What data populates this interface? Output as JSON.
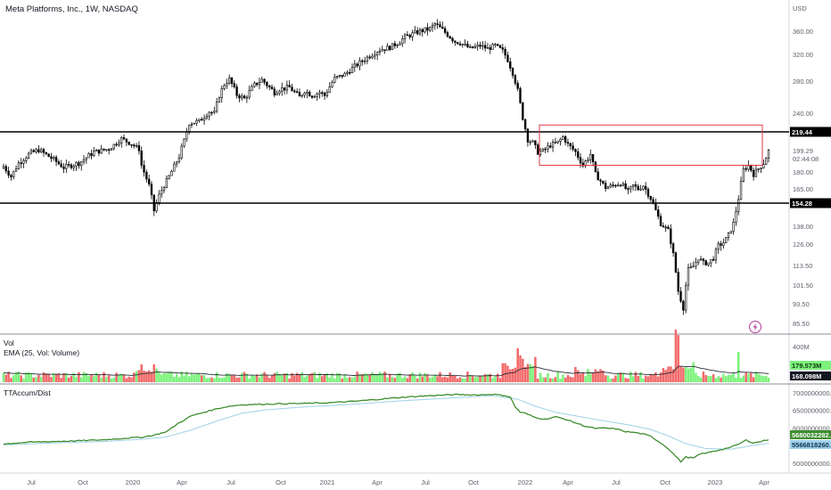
{
  "header": {
    "title": "Meta Platforms, Inc., 1W, NASDAQ",
    "currency": "USD"
  },
  "colors": {
    "up": "#ffffff",
    "down": "#000000",
    "vol_up": "#7cf27c",
    "vol_down": "#f26b6b",
    "ema": "#2a2e39",
    "accum": "#3e8d2f",
    "accum_signal": "#9fd0e8",
    "level_line": "#000000",
    "box": "#e03a45"
  },
  "chart_data": [
    {
      "type": "candlestick",
      "title": "Meta Platforms, Inc., 1W, NASDAQ",
      "y_axis_label": "USD",
      "y_ticks": [
        "360.00",
        "320.00",
        "280.00",
        "240.00",
        "219.44",
        "199.29",
        "180.00",
        "165.00",
        "154.28",
        "138.00",
        "126.00",
        "113.50",
        "101.50",
        "93.50",
        "85.50"
      ],
      "price_axis_tags": [
        {
          "label": "219.44",
          "value": 219.44
        },
        {
          "label": "199.29",
          "value": 199.29,
          "sub": "02:44:08"
        },
        {
          "label": "154.28",
          "value": 154.28
        }
      ],
      "ylim": [
        82,
        390
      ],
      "x_ticks": [
        "Jul",
        "Oct",
        "2020",
        "Apr",
        "Jul",
        "Oct",
        "2021",
        "Apr",
        "Jul",
        "Oct",
        "2022",
        "Apr",
        "Jul",
        "Oct",
        "2023",
        "Apr"
      ],
      "horizontal_lines": [
        219.44,
        154.28
      ],
      "box": {
        "x_from": "2022-01",
        "x_to": "2023-03",
        "y_from": 186,
        "y_to": 227
      },
      "close_anchors": [
        [
          0,
          185
        ],
        [
          3,
          176
        ],
        [
          6,
          188
        ],
        [
          10,
          196
        ],
        [
          14,
          200
        ],
        [
          20,
          191
        ],
        [
          24,
          184
        ],
        [
          30,
          188
        ],
        [
          36,
          198
        ],
        [
          42,
          201
        ],
        [
          47,
          212
        ],
        [
          50,
          208
        ],
        [
          54,
          201
        ],
        [
          55,
          186
        ],
        [
          58,
          168
        ],
        [
          60,
          149
        ],
        [
          62,
          160
        ],
        [
          66,
          176
        ],
        [
          70,
          194
        ],
        [
          72,
          210
        ],
        [
          74,
          229
        ],
        [
          78,
          231
        ],
        [
          82,
          242
        ],
        [
          84,
          240
        ],
        [
          86,
          262
        ],
        [
          88,
          276
        ],
        [
          90,
          283
        ],
        [
          93,
          263
        ],
        [
          96,
          258
        ],
        [
          100,
          275
        ],
        [
          103,
          282
        ],
        [
          106,
          272
        ],
        [
          108,
          266
        ],
        [
          110,
          270
        ],
        [
          114,
          272
        ],
        [
          118,
          260
        ],
        [
          120,
          268
        ],
        [
          123,
          262
        ],
        [
          126,
          266
        ],
        [
          128,
          262
        ],
        [
          130,
          273
        ],
        [
          132,
          284
        ],
        [
          136,
          290
        ],
        [
          140,
          302
        ],
        [
          143,
          310
        ],
        [
          146,
          318
        ],
        [
          150,
          328
        ],
        [
          154,
          332
        ],
        [
          158,
          342
        ],
        [
          160,
          350
        ],
        [
          163,
          355
        ],
        [
          166,
          360
        ],
        [
          170,
          364
        ],
        [
          172,
          372
        ],
        [
          175,
          362
        ],
        [
          178,
          350
        ],
        [
          180,
          342
        ],
        [
          182,
          340
        ],
        [
          186,
          330
        ],
        [
          190,
          335
        ],
        [
          193,
          330
        ],
        [
          196,
          335
        ],
        [
          199,
          326
        ],
        [
          201,
          312
        ],
        [
          203,
          292
        ],
        [
          205,
          268
        ],
        [
          207,
          235
        ],
        [
          209,
          211
        ],
        [
          211,
          208
        ],
        [
          213,
          198
        ],
        [
          215,
          199
        ],
        [
          218,
          205
        ],
        [
          221,
          208
        ],
        [
          223,
          214
        ],
        [
          225,
          206
        ],
        [
          228,
          198
        ],
        [
          231,
          186
        ],
        [
          234,
          196
        ],
        [
          236,
          178
        ],
        [
          238,
          172
        ],
        [
          240,
          166
        ],
        [
          243,
          168
        ],
        [
          246,
          170
        ],
        [
          249,
          163
        ],
        [
          251,
          168
        ],
        [
          253,
          165
        ],
        [
          255,
          168
        ],
        [
          258,
          158
        ],
        [
          262,
          140
        ],
        [
          265,
          135
        ],
        [
          267,
          120
        ],
        [
          269,
          99
        ],
        [
          271,
          92
        ],
        [
          273,
          111
        ],
        [
          275,
          113
        ],
        [
          277,
          118
        ],
        [
          279,
          115
        ],
        [
          281,
          115
        ],
        [
          283,
          118
        ],
        [
          285,
          125
        ],
        [
          287,
          127
        ],
        [
          289,
          132
        ],
        [
          291,
          140
        ],
        [
          293,
          158
        ],
        [
          295,
          182
        ],
        [
          297,
          186
        ],
        [
          299,
          178
        ],
        [
          301,
          183
        ],
        [
          303,
          188
        ],
        [
          305,
          199
        ]
      ]
    },
    {
      "type": "bar",
      "title": "Vol",
      "subtitle": "EMA (25, Vol: Volume)",
      "y_ticks": [
        "400M"
      ],
      "value_tags": [
        "179.573M",
        "168.098M"
      ],
      "volume_series": "weekly volume bars, green when week closes up, red when down; EMA(25) overlay"
    },
    {
      "type": "line",
      "title": "TTAccum/Dist",
      "y_ticks": [
        "7000000000.00",
        "6500000000.00",
        "6000000000.00",
        "5500000000.00",
        "5000000000.00"
      ],
      "value_tags": [
        "5680032282.91",
        "5566818260.02"
      ],
      "ylim": [
        4800000000,
        7150000000
      ],
      "series": [
        {
          "name": "",
          "color": "#3e8d2f",
          "anchors": [
            [
              0,
              5550000000
            ],
            [
              10,
              5600000000
            ],
            [
              20,
              5620000000
            ],
            [
              30,
              5640000000
            ],
            [
              40,
              5670000000
            ],
            [
              50,
              5720000000
            ],
            [
              55,
              5740000000
            ],
            [
              60,
              5800000000
            ],
            [
              65,
              5900000000
            ],
            [
              70,
              6150000000
            ],
            [
              75,
              6350000000
            ],
            [
              80,
              6450000000
            ],
            [
              85,
              6550000000
            ],
            [
              90,
              6620000000
            ],
            [
              95,
              6660000000
            ],
            [
              100,
              6670000000
            ],
            [
              110,
              6690000000
            ],
            [
              120,
              6700000000
            ],
            [
              130,
              6720000000
            ],
            [
              140,
              6760000000
            ],
            [
              150,
              6820000000
            ],
            [
              160,
              6880000000
            ],
            [
              170,
              6920000000
            ],
            [
              180,
              6950000000
            ],
            [
              190,
              6940000000
            ],
            [
              195,
              6960000000
            ],
            [
              200,
              6920000000
            ],
            [
              202,
              6880000000
            ],
            [
              204,
              6600000000
            ],
            [
              206,
              6450000000
            ],
            [
              208,
              6420000000
            ],
            [
              212,
              6300000000
            ],
            [
              216,
              6250000000
            ],
            [
              220,
              6320000000
            ],
            [
              224,
              6250000000
            ],
            [
              228,
              6150000000
            ],
            [
              232,
              6050000000
            ],
            [
              236,
              5990000000
            ],
            [
              240,
              6000000000
            ],
            [
              244,
              5980000000
            ],
            [
              248,
              5900000000
            ],
            [
              252,
              5870000000
            ],
            [
              255,
              5830000000
            ],
            [
              258,
              5770000000
            ],
            [
              262,
              5580000000
            ],
            [
              265,
              5420000000
            ],
            [
              268,
              5200000000
            ],
            [
              270,
              5050000000
            ],
            [
              272,
              5180000000
            ],
            [
              275,
              5150000000
            ],
            [
              278,
              5270000000
            ],
            [
              282,
              5320000000
            ],
            [
              286,
              5390000000
            ],
            [
              290,
              5460000000
            ],
            [
              293,
              5540000000
            ],
            [
              296,
              5660000000
            ],
            [
              299,
              5580000000
            ],
            [
              302,
              5620000000
            ],
            [
              305,
              5680000000
            ]
          ]
        },
        {
          "name": "",
          "color": "#9fd0e8",
          "anchors": [
            [
              0,
              5520000000
            ],
            [
              20,
              5580000000
            ],
            [
              40,
              5620000000
            ],
            [
              55,
              5680000000
            ],
            [
              65,
              5750000000
            ],
            [
              75,
              5950000000
            ],
            [
              85,
              6200000000
            ],
            [
              95,
              6420000000
            ],
            [
              105,
              6520000000
            ],
            [
              120,
              6600000000
            ],
            [
              140,
              6680000000
            ],
            [
              160,
              6780000000
            ],
            [
              180,
              6860000000
            ],
            [
              195,
              6920000000
            ],
            [
              205,
              6820000000
            ],
            [
              212,
              6620000000
            ],
            [
              220,
              6450000000
            ],
            [
              230,
              6320000000
            ],
            [
              240,
              6200000000
            ],
            [
              250,
              6080000000
            ],
            [
              258,
              5960000000
            ],
            [
              265,
              5780000000
            ],
            [
              272,
              5560000000
            ],
            [
              280,
              5420000000
            ],
            [
              290,
              5400000000
            ],
            [
              298,
              5500000000
            ],
            [
              305,
              5567000000
            ]
          ]
        }
      ]
    }
  ]
}
